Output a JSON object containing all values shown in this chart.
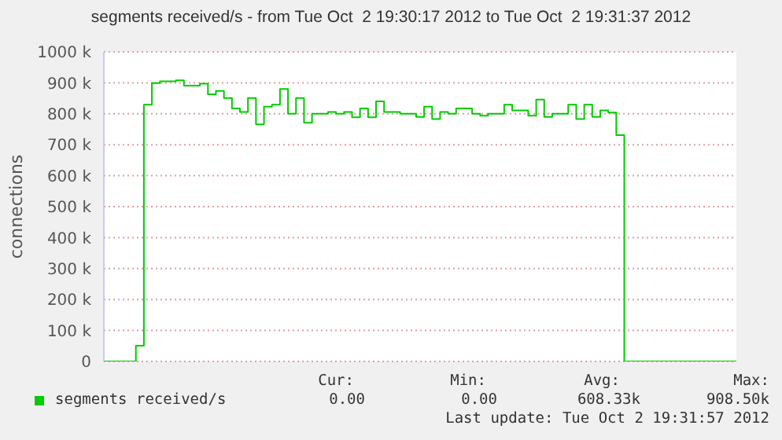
{
  "chart_data": {
    "type": "step",
    "title": "segments received/s - from Tue Oct  2 19:30:17 2012 to Tue Oct  2 19:31:37 2012",
    "ylabel": "connections",
    "categories": [
      null,
      null,
      null,
      null,
      null,
      null,
      null,
      null,
      null,
      null,
      null,
      null,
      null,
      null,
      null,
      null,
      null,
      null,
      null,
      null,
      null,
      null,
      null,
      null,
      null,
      null,
      null,
      null,
      null,
      null,
      null,
      null,
      null,
      null,
      null,
      null,
      null,
      null,
      null,
      null,
      null,
      null,
      null,
      null,
      null,
      null,
      null,
      null,
      null,
      null,
      null,
      null,
      null,
      null,
      null,
      null,
      null,
      null,
      null,
      null,
      null,
      null,
      null,
      null,
      null,
      null,
      null,
      null,
      null,
      null,
      null,
      null,
      null,
      null,
      null,
      null,
      null,
      null,
      null,
      null
    ],
    "series": [
      {
        "name": "segments received/s",
        "color": "#00cc00",
        "values": [
          0,
          0,
          0,
          0,
          51,
          829,
          899,
          905,
          905,
          908,
          891,
          891,
          897,
          863,
          874,
          851,
          817,
          806,
          851,
          766,
          823,
          829,
          880,
          800,
          851,
          771,
          800,
          800,
          806,
          800,
          806,
          789,
          817,
          789,
          840,
          806,
          806,
          800,
          800,
          790,
          823,
          783,
          806,
          800,
          817,
          817,
          800,
          794,
          800,
          800,
          829,
          811,
          811,
          794,
          846,
          790,
          800,
          800,
          829,
          783,
          829,
          790,
          811,
          804,
          731,
          0,
          0,
          0,
          0,
          0,
          0,
          0,
          0,
          0,
          0,
          0,
          0,
          0,
          0,
          0
        ]
      }
    ],
    "ylim": [
      0,
      1000
    ],
    "yticks": [
      0,
      {
        "value": 100,
        "label": "100 k"
      },
      {
        "value": 200,
        "label": "200 k"
      },
      {
        "value": 300,
        "label": "300 k"
      },
      {
        "value": 400,
        "label": "400 k"
      },
      {
        "value": 500,
        "label": "500 k"
      },
      {
        "value": 600,
        "label": "600 k"
      },
      {
        "value": 700,
        "label": "700 k"
      },
      {
        "value": 800,
        "label": "800 k"
      },
      {
        "value": 900,
        "label": "900 k"
      },
      {
        "value": 1000,
        "label": "1000 k"
      }
    ],
    "grid": "y",
    "legend": "bottom",
    "marker": "none",
    "line_style": "solid",
    "annotations": [
      "Cur:",
      "0.00",
      "Min:",
      "0.00",
      "Avg:",
      "608.33k",
      "Max:",
      "908.50k",
      "Last update: Tue Oct  2 19:31:57 2012"
    ]
  }
}
